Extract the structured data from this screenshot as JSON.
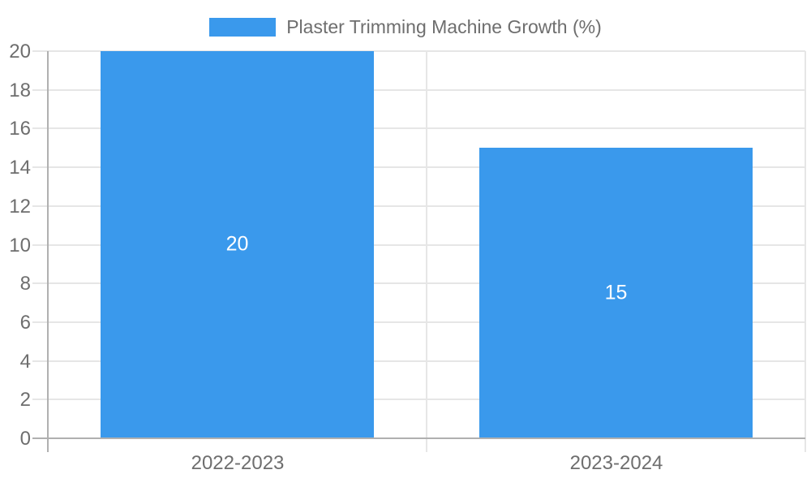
{
  "chart_data": {
    "type": "bar",
    "title": "",
    "legend": "Plaster Trimming Machine Growth (%)",
    "legend_position": "top",
    "categories": [
      "2022-2023",
      "2023-2024"
    ],
    "series": [
      {
        "name": "Plaster Trimming Machine Growth (%)",
        "values": [
          20,
          15
        ]
      }
    ],
    "value_labels": [
      "20",
      "15"
    ],
    "xlabel": "",
    "ylabel": "",
    "ylim": [
      0,
      20
    ],
    "ytick_step": 2,
    "yticks": [
      0,
      2,
      4,
      6,
      8,
      10,
      12,
      14,
      16,
      18,
      20
    ],
    "grid": true,
    "colors": {
      "bar": "#3a99ec",
      "bar_value_text": "#ffffff",
      "axis_text": "#6e6e6e",
      "gridline": "#e6e6e6",
      "axis_line": "#b0b0b0",
      "background": "#ffffff"
    }
  }
}
